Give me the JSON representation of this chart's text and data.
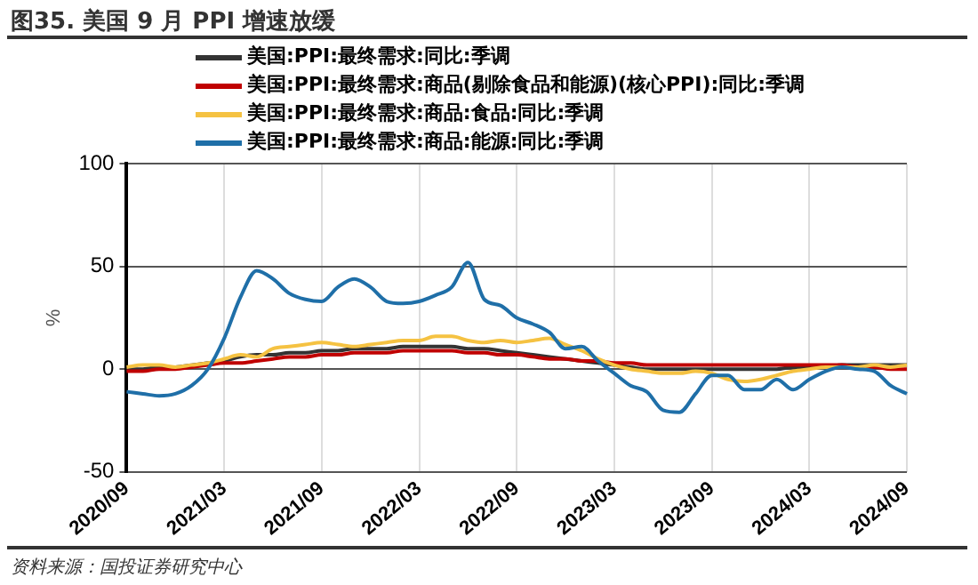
{
  "chart_data": {
    "type": "line",
    "title": "图35. 美国 9 月 PPI 增速放缓",
    "ylabel": "%",
    "annotations": [
      "资料来源：国投证券研究中心"
    ],
    "categories": [
      "2020/09",
      null,
      null,
      null,
      null,
      null,
      "2021/03",
      null,
      null,
      null,
      null,
      null,
      "2021/09",
      null,
      null,
      null,
      null,
      null,
      "2022/03",
      null,
      null,
      null,
      null,
      null,
      "2022/09",
      null,
      null,
      null,
      null,
      null,
      "2023/03",
      null,
      null,
      null,
      null,
      null,
      "2023/09",
      null,
      null,
      null,
      null,
      null,
      "2024/03",
      null,
      null,
      null,
      null,
      null,
      "2024/09"
    ],
    "series": [
      {
        "name": "美国:PPI:最终需求:同比:季调",
        "color": "#333333",
        "values": [
          0,
          0,
          1,
          1,
          2,
          3,
          4,
          6,
          7,
          7,
          8,
          8,
          9,
          9,
          10,
          10,
          10,
          11,
          11,
          11,
          11,
          10,
          10,
          9,
          8,
          7,
          6,
          5,
          4,
          3,
          2,
          1,
          0,
          0,
          0,
          0,
          0,
          0,
          0,
          0,
          0,
          1,
          1,
          1,
          2,
          2,
          2,
          2,
          2
        ]
      },
      {
        "name": "美国:PPI:最终需求:商品(剔除食品和能源)(核心PPI):同比:季调",
        "color": "#c00000",
        "values": [
          -1,
          -1,
          0,
          0,
          1,
          2,
          3,
          3,
          4,
          5,
          6,
          6,
          7,
          7,
          8,
          8,
          8,
          9,
          9,
          9,
          9,
          8,
          8,
          7,
          7,
          6,
          5,
          5,
          4,
          4,
          3,
          3,
          2,
          2,
          2,
          2,
          2,
          2,
          2,
          2,
          2,
          2,
          2,
          2,
          2,
          1,
          1,
          0,
          0
        ]
      },
      {
        "name": "美国:PPI:最终需求:商品:食品:同比:季调",
        "color": "#f5c242",
        "values": [
          1,
          2,
          2,
          1,
          2,
          3,
          5,
          7,
          6,
          10,
          11,
          12,
          13,
          12,
          11,
          12,
          13,
          14,
          14,
          16,
          16,
          14,
          13,
          14,
          13,
          14,
          15,
          12,
          9,
          5,
          2,
          0,
          -1,
          -2,
          -2,
          -1,
          -2,
          -5,
          -6,
          -5,
          -3,
          -1,
          0,
          1,
          1,
          1,
          2,
          1,
          2
        ]
      },
      {
        "name": "美国:PPI:最终需求:商品:能源:同比:季调",
        "color": "#1f6fa8",
        "values": [
          -11,
          -12,
          -13,
          -12,
          -8,
          0,
          15,
          35,
          48,
          44,
          37,
          34,
          33,
          40,
          44,
          40,
          33,
          32,
          33,
          36,
          40,
          52,
          34,
          31,
          25,
          22,
          18,
          10,
          11,
          4,
          -2,
          -8,
          -11,
          -20,
          -21,
          -12,
          -3,
          -3,
          -10,
          -10,
          -5,
          -10,
          -5,
          -1,
          1,
          0,
          -1,
          -8,
          -12
        ]
      }
    ],
    "ylim": [
      -50,
      100
    ],
    "yticks": [
      -50,
      0,
      50,
      100
    ],
    "grid": true,
    "legend": "top",
    "marker": "none",
    "line_style": "solid"
  }
}
